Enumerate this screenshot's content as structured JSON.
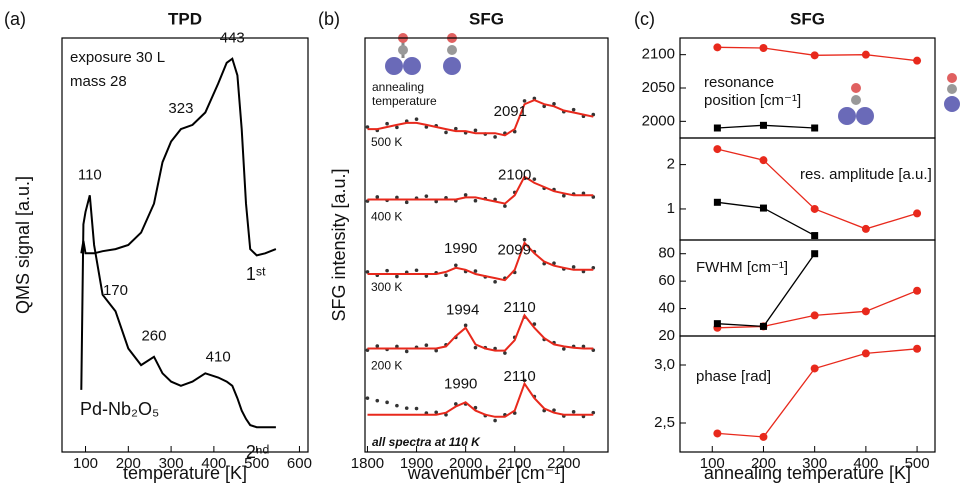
{
  "chart_data": [
    {
      "type": "line",
      "panel": "(a)",
      "title": "TPD",
      "xlabel": "temperature [K]",
      "ylabel": "QMS signal [a.u.]",
      "xlim": [
        45,
        620
      ],
      "xticks": [
        100,
        200,
        300,
        400,
        500,
        600
      ],
      "ylim": [
        0,
        100
      ],
      "annotations": [
        "exposure 30 L",
        "mass 28",
        "Pd-Nb₂O₅"
      ],
      "x": [
        90,
        95,
        100,
        110,
        120,
        140,
        170,
        200,
        230,
        260,
        280,
        300,
        323,
        350,
        380,
        410,
        430,
        443,
        455,
        465,
        475,
        485,
        500,
        520,
        545
      ],
      "series": [
        {
          "name": "1ˢᵗ",
          "color": "#000000",
          "peak_labels": [
            323,
            443
          ],
          "values": [
            48,
            51,
            48,
            48,
            48,
            48.5,
            49,
            50,
            53,
            60,
            70,
            75,
            78,
            79,
            82,
            89,
            94,
            95,
            91,
            78,
            60,
            49,
            47.5,
            48,
            49
          ]
        },
        {
          "name": "2ⁿᵈ",
          "color": "#000000",
          "peak_labels": [
            110,
            170,
            260,
            410
          ],
          "values": [
            15,
            55,
            58,
            62,
            50,
            38,
            34,
            25,
            21,
            23,
            19,
            17,
            16,
            17,
            19,
            18,
            17,
            16,
            13,
            10,
            8,
            6.5,
            6,
            6,
            6
          ]
        }
      ]
    },
    {
      "type": "spectra",
      "panel": "(b)",
      "title": "SFG",
      "xlabel": "wavenumber [cm⁻¹]",
      "ylabel": "SFG intensity [a.u.]",
      "xlim": [
        1795,
        2290
      ],
      "xticks": [
        1800,
        1900,
        2000,
        2100,
        2200
      ],
      "ylim": [
        0,
        100
      ],
      "annotations": [
        "annealing",
        "temperature",
        "all spectra at 110 K"
      ],
      "x": [
        1800,
        1820,
        1840,
        1860,
        1880,
        1900,
        1920,
        1940,
        1960,
        1980,
        2000,
        2020,
        2040,
        2060,
        2080,
        2100,
        2120,
        2140,
        2160,
        2180,
        2200,
        2220,
        2240,
        2260
      ],
      "series": [
        {
          "name": "500 K",
          "style": "dots",
          "color": "#333333",
          "values": [
            78.5,
            77.7,
            79.3,
            78.4,
            79.9,
            80.4,
            78.5,
            78.8,
            77.2,
            78.1,
            77.1,
            77.7,
            76.8,
            76.1,
            77,
            77.4,
            84.8,
            85.4,
            83.5,
            84.1,
            82.2,
            82.7,
            81.1,
            81.5
          ]
        },
        {
          "style": "line",
          "color": "#e8291c",
          "peak_labels": [
            2091
          ],
          "values": [
            78,
            78,
            78.5,
            79,
            79.5,
            79.5,
            79,
            78.5,
            78,
            77.5,
            77.5,
            77,
            77,
            77,
            76.5,
            78,
            84,
            85,
            84,
            83.5,
            82.5,
            82,
            81.5,
            81
          ]
        },
        {
          "name": "400 K",
          "style": "dots",
          "color": "#333333",
          "values": [
            60.6,
            61.6,
            60.8,
            61.5,
            60.3,
            61.3,
            61.8,
            60.5,
            61.4,
            60.7,
            62.1,
            60.7,
            61.2,
            61,
            59.4,
            62.7,
            66.1,
            65.9,
            63.7,
            63.4,
            61.9,
            62.3,
            62.5,
            61.6
          ]
        },
        {
          "style": "line",
          "color": "#e8291c",
          "peak_labels": [
            2100
          ],
          "values": [
            61,
            61,
            61,
            61,
            61,
            61,
            61,
            61,
            61,
            61,
            61.5,
            61.5,
            61,
            60.5,
            60,
            62,
            66.5,
            65,
            64,
            63,
            62.5,
            62,
            62,
            62
          ]
        },
        {
          "name": "300 K",
          "style": "dots",
          "color": "#333333",
          "values": [
            43.5,
            42.7,
            43.8,
            42.4,
            43.4,
            43.9,
            42.5,
            43.3,
            42.7,
            45.1,
            43.6,
            43.7,
            42.3,
            41.1,
            42,
            43.4,
            51.3,
            48.4,
            45.5,
            45.6,
            44.2,
            44.7,
            43.6,
            44.5
          ]
        },
        {
          "style": "line",
          "color": "#e8291c",
          "peak_labels": [
            1990,
            2099
          ],
          "values": [
            43,
            43,
            43,
            43,
            43,
            43,
            43,
            43,
            43.5,
            44.5,
            44,
            43,
            42.5,
            42,
            41.5,
            44,
            50.5,
            48,
            46,
            45,
            44.5,
            44,
            44,
            44
          ]
        },
        {
          "name": "200 K",
          "style": "dots",
          "color": "#333333",
          "values": [
            24.6,
            25.6,
            24.8,
            25.5,
            24.3,
            25.3,
            25.8,
            24.5,
            25.9,
            27.7,
            30.6,
            25.2,
            25.2,
            25,
            23.9,
            27.7,
            32.6,
            30.9,
            27.2,
            26.4,
            24.9,
            25.5,
            25.5,
            24.6
          ]
        },
        {
          "style": "line",
          "color": "#e8291c",
          "peak_labels": [
            1994,
            2110
          ],
          "values": [
            25,
            25,
            25,
            25,
            25,
            25,
            25,
            25,
            25.5,
            28,
            30,
            26,
            25,
            24.5,
            24.5,
            27,
            33,
            30,
            27.5,
            26,
            25.5,
            25.2,
            25,
            25
          ]
        },
        {
          "style": "dots",
          "color": "#333333",
          "values": [
            13,
            12.4,
            12,
            11.2,
            10.6,
            10.5,
            9.4,
            9.6,
            9,
            11.6,
            11.6,
            10.7,
            8.8,
            7.6,
            9,
            9.4,
            17.3,
            13.4,
            10,
            10.1,
            8.7,
            9.7,
            8.6,
            9.5
          ]
        },
        {
          "style": "line",
          "color": "#e8291c",
          "peak_labels": [
            1990,
            2110
          ],
          "values": [
            9,
            9,
            9,
            9,
            9,
            9,
            9,
            9,
            9.5,
            11,
            12,
            10,
            9,
            8.5,
            8.5,
            10,
            16.5,
            13,
            10.5,
            9.5,
            9,
            9,
            9,
            9
          ]
        }
      ]
    },
    {
      "type": "line",
      "panel": "(c)",
      "title": "SFG",
      "xlim": [
        37,
        535
      ],
      "ylim": [
        1975,
        2125
      ],
      "yticks": [
        2000,
        2050,
        2100
      ],
      "annotations": [
        "resonance",
        "position [cm⁻¹]"
      ],
      "x": [
        110,
        200,
        300,
        400,
        500
      ],
      "series": [
        {
          "color": "#e8291c",
          "marker": "circle",
          "values": [
            2111,
            2110,
            2099,
            2100,
            2091
          ]
        },
        {
          "color": "#000000",
          "marker": "square",
          "values": [
            1990,
            1994,
            1990,
            null,
            null
          ]
        }
      ]
    },
    {
      "type": "line",
      "xlim": [
        37,
        535
      ],
      "ylim": [
        0.3,
        2.6
      ],
      "yticks": [
        1,
        2
      ],
      "annotations": [
        "res. amplitude [a.u.]"
      ],
      "x": [
        110,
        200,
        300,
        400,
        500
      ],
      "series": [
        {
          "color": "#e8291c",
          "marker": "circle",
          "values": [
            2.35,
            2.1,
            1.0,
            0.55,
            0.9
          ]
        },
        {
          "color": "#000000",
          "marker": "square",
          "values": [
            1.15,
            1.02,
            0.4,
            null,
            null
          ]
        }
      ]
    },
    {
      "type": "line",
      "xlim": [
        37,
        535
      ],
      "ylim": [
        20,
        90
      ],
      "yticks": [
        20,
        40,
        60,
        80
      ],
      "annotations": [
        "FWHM [cm⁻¹]"
      ],
      "x": [
        110,
        200,
        300,
        400,
        500
      ],
      "series": [
        {
          "color": "#e8291c",
          "marker": "circle",
          "values": [
            26,
            27,
            35,
            38,
            53
          ]
        },
        {
          "color": "#000000",
          "marker": "square",
          "values": [
            29,
            27,
            80,
            null,
            null
          ]
        }
      ]
    },
    {
      "type": "line",
      "xlabel": "annealing temperature [K]",
      "xlim": [
        37,
        535
      ],
      "xticks": [
        100,
        200,
        300,
        400,
        500
      ],
      "ylim": [
        2.25,
        3.25
      ],
      "yticks": [
        {
          "value": 2.5,
          "label": "2,5"
        },
        {
          "value": 3.0,
          "label": "3,0"
        }
      ],
      "annotations": [
        "phase [rad]"
      ],
      "x": [
        110,
        200,
        300,
        400,
        500
      ],
      "series": [
        {
          "color": "#e8291c",
          "marker": "circle",
          "values": [
            2.41,
            2.38,
            2.97,
            3.1,
            3.14
          ]
        }
      ]
    }
  ]
}
